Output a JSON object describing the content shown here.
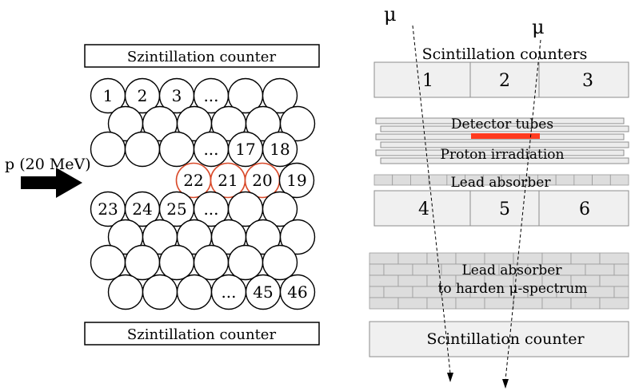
{
  "left": {
    "top_counter": "Szintillation counter",
    "bottom_counter": "Szintillation counter",
    "beam_label": "p (20 MeV)",
    "tubes": [
      {
        "label": "1"
      },
      {
        "label": "2"
      },
      {
        "label": "3"
      },
      {
        "label": "..."
      },
      {
        "label": "..."
      },
      {
        "label": "17"
      },
      {
        "label": "18"
      },
      {
        "label": "22"
      },
      {
        "label": "21"
      },
      {
        "label": "20"
      },
      {
        "label": "19"
      },
      {
        "label": "23"
      },
      {
        "label": "24"
      },
      {
        "label": "25"
      },
      {
        "label": "..."
      },
      {
        "label": "..."
      },
      {
        "label": "45"
      },
      {
        "label": "46"
      }
    ]
  },
  "right": {
    "mu_left": "μ",
    "mu_right": "μ",
    "top_title": "Scintillation counters",
    "top_segments": [
      "1",
      "2",
      "3"
    ],
    "detector_tubes": "Detector tubes",
    "proton_irradiation": "Proton irradiation",
    "lead_absorber": "Lead absorber",
    "mid_segments": [
      "4",
      "5",
      "6"
    ],
    "lead_absorber_thick_1": "Lead absorber",
    "lead_absorber_thick_2": "to harden μ-spectrum",
    "bottom_counter": "Scintillation counter"
  },
  "colors": {
    "irradiated": "#d94a2a",
    "irradiation_bar": "#ff3b1f"
  }
}
